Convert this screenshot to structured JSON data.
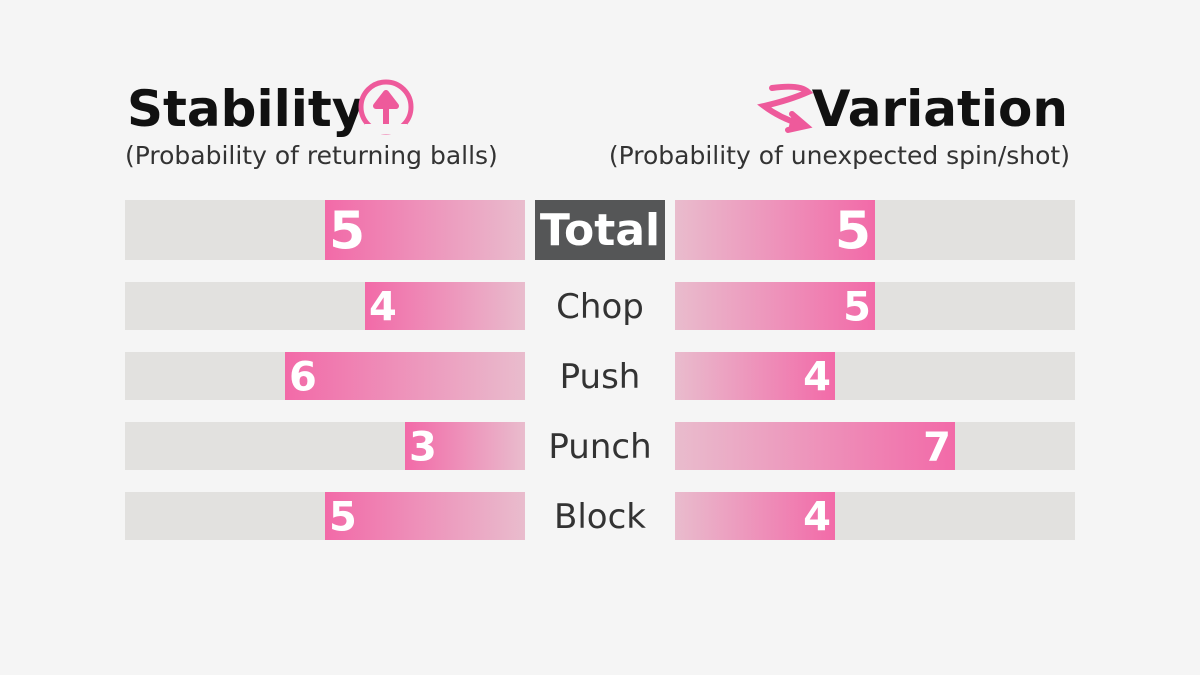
{
  "chart_data": {
    "type": "butterfly",
    "categories": [
      "Total",
      "Chop",
      "Push",
      "Punch",
      "Block"
    ],
    "series": [
      {
        "name": "Stability",
        "subtitle": "(Probability of returning balls)",
        "color": "#f26aa8",
        "values": [
          5,
          4,
          6,
          3,
          5
        ]
      },
      {
        "name": "Variation",
        "subtitle": "(Probability of unexpected spin/shot)",
        "color": "#f26aa8",
        "values": [
          5,
          5,
          4,
          7,
          4
        ]
      }
    ],
    "xlim": [
      0,
      10
    ]
  }
}
